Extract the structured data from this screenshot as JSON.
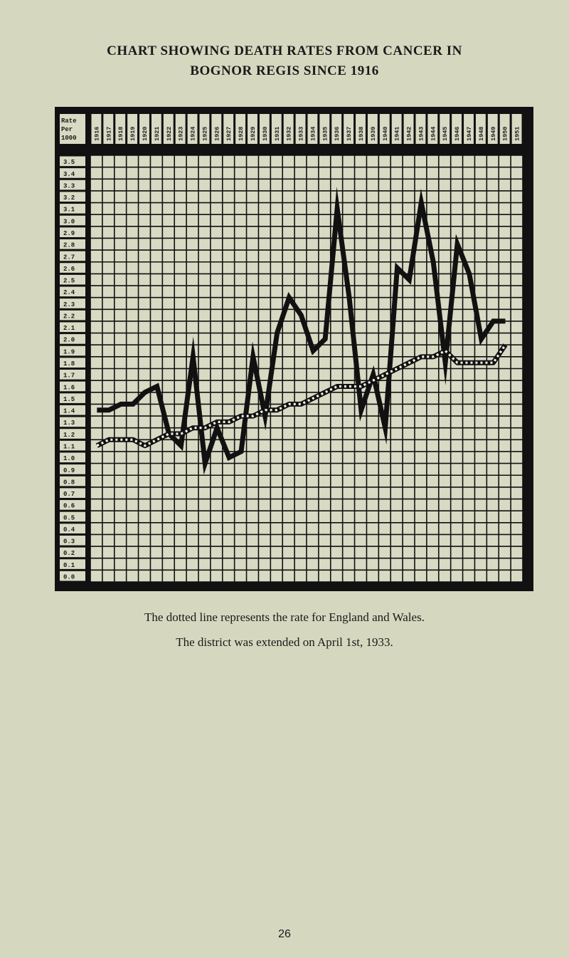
{
  "page": {
    "title_line1": "CHART SHOWING DEATH RATES FROM CANCER IN",
    "title_line2": "BOGNOR REGIS SINCE 1916",
    "caption_line1": "The dotted line represents the rate for England and Wales.",
    "caption_line2": "The district was extended on April 1st, 1933.",
    "page_number": "26"
  },
  "colors": {
    "paper": "#d6d7bf",
    "ink": "#111111",
    "cell": "#d9dac4"
  },
  "chart_data": {
    "type": "line",
    "title": "Chart showing death rates from cancer in Bognor Regis since 1916",
    "ylabel_lines": [
      "Rate",
      "Per",
      "1000"
    ],
    "xlabel": "",
    "ylabel": "Rate Per 1000",
    "ylim": [
      0.0,
      3.5
    ],
    "y_ticks": [
      "3.5",
      "3.4",
      "3.3",
      "3.2",
      "3.1",
      "3.0",
      "2.9",
      "2.8",
      "2.7",
      "2.6",
      "2.5",
      "2.4",
      "2.3",
      "2.2",
      "2.1",
      "2.0",
      "1.9",
      "1.8",
      "1.7",
      "1.6",
      "1.5",
      "1.4",
      "1.3",
      "1.2",
      "1.1",
      "1.0",
      "0.9",
      "0.8",
      "0.7",
      "0.6",
      "0.5",
      "0.4",
      "0.3",
      "0.2",
      "0.1",
      "0.0"
    ],
    "grid": true,
    "legend": "The dotted line represents the rate for England and Wales.",
    "annotation": "The district was extended on April 1st, 1933.",
    "categories": [
      "1916",
      "1917",
      "1918",
      "1919",
      "1920",
      "1921",
      "1922",
      "1923",
      "1924",
      "1925",
      "1926",
      "1927",
      "1928",
      "1929",
      "1930",
      "1931",
      "1932",
      "1933",
      "1934",
      "1935",
      "1936",
      "1937",
      "1938",
      "1939",
      "1940",
      "1941",
      "1942",
      "1943",
      "1944",
      "1945",
      "1946",
      "1947",
      "1948",
      "1949",
      "1950",
      "1951"
    ],
    "series": [
      {
        "name": "Bognor Regis",
        "style": "solid",
        "values": [
          1.4,
          1.4,
          1.45,
          1.45,
          1.55,
          1.6,
          1.2,
          1.1,
          1.85,
          0.95,
          1.25,
          1.0,
          1.05,
          1.85,
          1.35,
          2.05,
          2.35,
          2.2,
          1.9,
          2.0,
          3.1,
          2.35,
          1.4,
          1.7,
          1.25,
          2.6,
          2.5,
          3.15,
          2.65,
          1.8,
          2.8,
          2.55,
          2.0,
          2.15,
          2.15,
          null
        ]
      },
      {
        "name": "England and Wales",
        "style": "dotted",
        "values": [
          1.1,
          1.15,
          1.15,
          1.15,
          1.1,
          1.15,
          1.2,
          1.2,
          1.25,
          1.25,
          1.3,
          1.3,
          1.35,
          1.35,
          1.4,
          1.4,
          1.45,
          1.45,
          1.5,
          1.55,
          1.6,
          1.6,
          1.6,
          1.65,
          1.7,
          1.75,
          1.8,
          1.85,
          1.85,
          1.9,
          1.8,
          1.8,
          1.8,
          1.8,
          1.95,
          null
        ]
      }
    ]
  }
}
